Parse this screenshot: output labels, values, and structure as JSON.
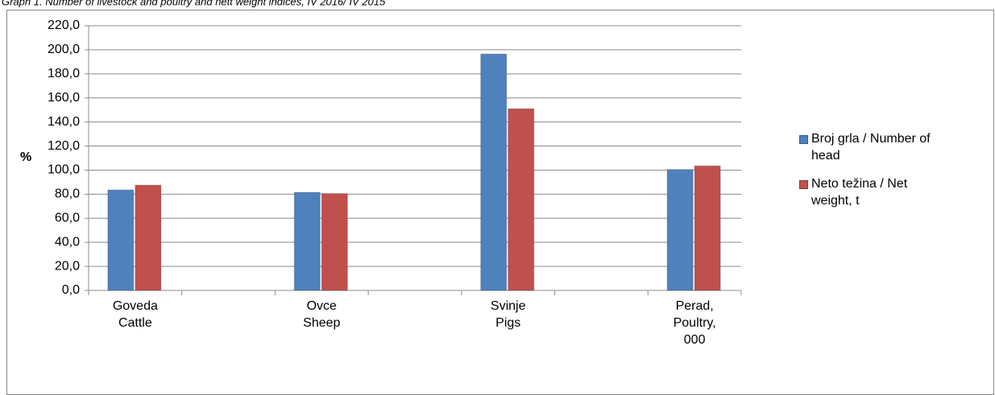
{
  "chart_data": {
    "type": "bar",
    "title": "Graph 1. Number of livestock and poultry and nett weight indices, IV 2016/ IV 2015",
    "y_label": "%",
    "categories": [
      [
        "Goveda",
        "Cattle"
      ],
      null,
      [
        "Ovce",
        "Sheep"
      ],
      null,
      [
        "Svinje",
        "Pigs"
      ],
      null,
      [
        "Perad,",
        "Poultry,",
        "000"
      ]
    ],
    "series": [
      {
        "name": "Broj grla / Number of head",
        "color": "#4f81bd",
        "values": [
          83.5,
          null,
          81.5,
          null,
          196.5,
          null,
          100.5
        ]
      },
      {
        "name": "Neto težina / Net weight, t",
        "color": "#c0504d",
        "values": [
          87.5,
          null,
          80.5,
          null,
          151.0,
          null,
          103.5
        ]
      }
    ],
    "ylim": [
      0,
      220
    ],
    "yticks": [
      {
        "value": 0,
        "label": "0,0"
      },
      {
        "value": 20,
        "label": "20,0"
      },
      {
        "value": 40,
        "label": "40,0"
      },
      {
        "value": 60,
        "label": "60,0"
      },
      {
        "value": 80,
        "label": "80,0"
      },
      {
        "value": 100,
        "label": "100,0"
      },
      {
        "value": 120,
        "label": "120,0"
      },
      {
        "value": 140,
        "label": "140,0"
      },
      {
        "value": 160,
        "label": "160,0"
      },
      {
        "value": 180,
        "label": "180,0"
      },
      {
        "value": 200,
        "label": "200,0"
      },
      {
        "value": 220,
        "label": "220,0"
      }
    ],
    "grid": true,
    "legend": "right"
  }
}
